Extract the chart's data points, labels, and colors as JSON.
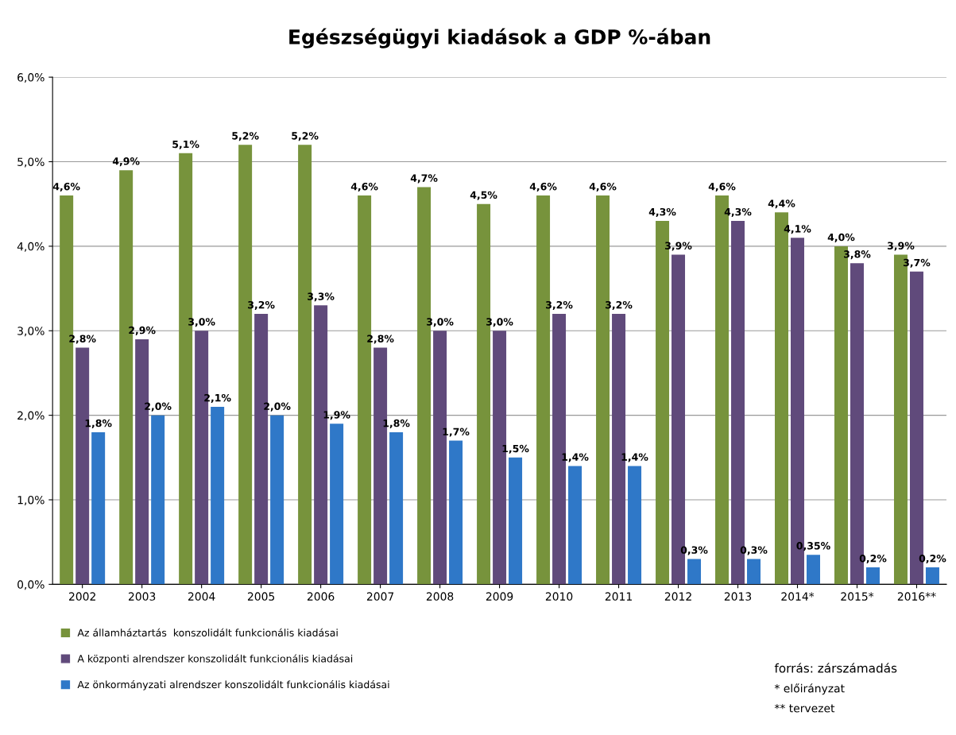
{
  "chart_data": {
    "type": "bar",
    "title": "Egészségügyi kiadások a GDP %-ában",
    "categories": [
      "2002",
      "2003",
      "2004",
      "2005",
      "2006",
      "2007",
      "2008",
      "2009",
      "2010",
      "2011",
      "2012",
      "2013",
      "2014*",
      "2015*",
      "2016**"
    ],
    "series": [
      {
        "name": "Az államháztartás  konszolidált funkcionális kiadásai",
        "color": "#77933c",
        "values": [
          4.6,
          4.9,
          5.1,
          5.2,
          5.2,
          4.6,
          4.7,
          4.5,
          4.6,
          4.6,
          4.3,
          4.6,
          4.4,
          4.0,
          3.9
        ],
        "value_labels": [
          "4,6%",
          "4,9%",
          "5,1%",
          "5,2%",
          "5,2%",
          "4,6%",
          "4,7%",
          "4,5%",
          "4,6%",
          "4,6%",
          "4,3%",
          "4,6%",
          "4,4%",
          "4,0%",
          "3,9%"
        ]
      },
      {
        "name": "A központi alrendszer konszolidált funkcionális kiadásai",
        "color": "#604a7b",
        "values": [
          2.8,
          2.9,
          3.0,
          3.2,
          3.3,
          2.8,
          3.0,
          3.0,
          3.2,
          3.2,
          3.9,
          4.3,
          4.1,
          3.8,
          3.7
        ],
        "value_labels": [
          "2,8%",
          "2,9%",
          "3,0%",
          "3,2%",
          "3,3%",
          "2,8%",
          "3,0%",
          "3,0%",
          "3,2%",
          "3,2%",
          "3,9%",
          "4,3%",
          "4,1%",
          "3,8%",
          "3,7%"
        ]
      },
      {
        "name": "Az önkormányzati alrendszer konszolidált funkcionális kiadásai",
        "color": "#2f78c8",
        "values": [
          1.8,
          2.0,
          2.1,
          2.0,
          1.9,
          1.8,
          1.7,
          1.5,
          1.4,
          1.4,
          0.3,
          0.3,
          0.35,
          0.2,
          0.2
        ],
        "value_labels": [
          "1,8%",
          "2,0%",
          "2,1%",
          "2,0%",
          "1,9%",
          "1,8%",
          "1,7%",
          "1,5%",
          "1,4%",
          "1,4%",
          "0,3%",
          "0,3%",
          "0,35%",
          "0,2%",
          "0,2%"
        ]
      }
    ],
    "ylim": [
      0,
      6
    ],
    "yticks": [
      {
        "value": 0,
        "label": "0,0%"
      },
      {
        "value": 1,
        "label": "1,0%"
      },
      {
        "value": 2,
        "label": "2,0%"
      },
      {
        "value": 3,
        "label": "3,0%"
      },
      {
        "value": 4,
        "label": "4,0%"
      },
      {
        "value": 5,
        "label": "5,0%"
      },
      {
        "value": 6,
        "label": "6,0%"
      }
    ],
    "grid": "y",
    "legend": "bottom left",
    "annotations": [
      "forrás: zárszámadás",
      "* előirányzat",
      "** tervezet"
    ]
  }
}
